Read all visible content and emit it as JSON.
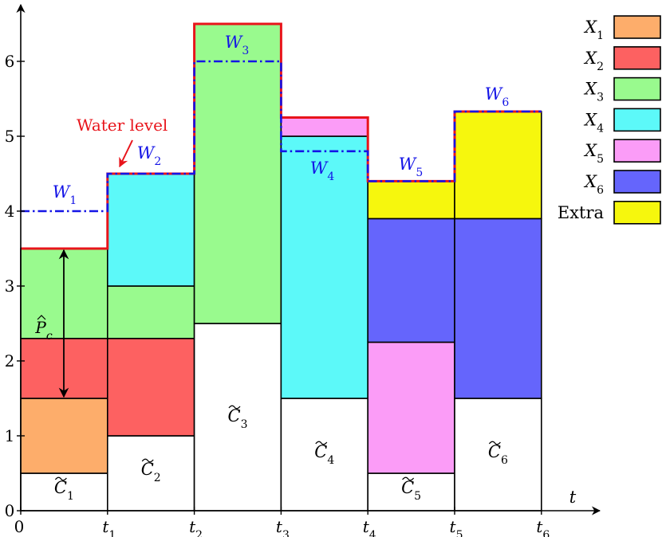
{
  "chart_data": {
    "type": "stacked-step",
    "xlabel": "t",
    "x_ticks": [
      {
        "main": "0",
        "sub": ""
      },
      {
        "main": "t",
        "sub": "1"
      },
      {
        "main": "t",
        "sub": "2"
      },
      {
        "main": "t",
        "sub": "3"
      },
      {
        "main": "t",
        "sub": "4"
      },
      {
        "main": "t",
        "sub": "5"
      },
      {
        "main": "t",
        "sub": "6"
      }
    ],
    "y_ticks": [
      "0",
      "1",
      "2",
      "3",
      "4",
      "5",
      "6"
    ],
    "ylim": [
      0,
      6.5
    ],
    "slots": [
      {
        "t0": 0,
        "t1": 1,
        "base": 0.5,
        "water": 4.0,
        "level": 3.5,
        "segments": [
          [
            "X1",
            0.5,
            1.5
          ],
          [
            "X2",
            1.5,
            2.3
          ],
          [
            "X3",
            2.3,
            3.5
          ]
        ]
      },
      {
        "t0": 1,
        "t1": 2,
        "base": 1.0,
        "water": 4.5,
        "level": 4.5,
        "segments": [
          [
            "X2",
            1.0,
            2.3
          ],
          [
            "X3",
            2.3,
            3.0
          ],
          [
            "X4",
            3.0,
            4.5
          ]
        ]
      },
      {
        "t0": 2,
        "t1": 3,
        "base": 2.5,
        "water": 6.0,
        "level": 6.5,
        "segments": [
          [
            "X3",
            2.5,
            6.5
          ]
        ]
      },
      {
        "t0": 3,
        "t1": 4,
        "base": 1.5,
        "water": 4.8,
        "level": 5.25,
        "segments": [
          [
            "X4",
            1.5,
            5.0
          ],
          [
            "X5",
            5.0,
            5.25
          ]
        ]
      },
      {
        "t0": 4,
        "t1": 5,
        "base": 0.5,
        "water": 4.4,
        "level": 4.4,
        "segments": [
          [
            "X5",
            0.5,
            2.25
          ],
          [
            "X6",
            2.25,
            3.9
          ],
          [
            "Extra",
            3.9,
            4.4
          ]
        ]
      },
      {
        "t0": 5,
        "t1": 6,
        "base": 1.5,
        "water": 5.33,
        "level": 5.33,
        "segments": [
          [
            "X6",
            1.5,
            3.9
          ],
          [
            "Extra",
            3.9,
            5.33
          ]
        ]
      }
    ],
    "c_labels": [
      {
        "main": "C",
        "sub": "1"
      },
      {
        "main": "C",
        "sub": "2"
      },
      {
        "main": "C",
        "sub": "3"
      },
      {
        "main": "C",
        "sub": "4"
      },
      {
        "main": "C",
        "sub": "5"
      },
      {
        "main": "C",
        "sub": "6"
      }
    ],
    "w_labels": [
      {
        "main": "W",
        "sub": "1"
      },
      {
        "main": "W",
        "sub": "2"
      },
      {
        "main": "W",
        "sub": "3"
      },
      {
        "main": "W",
        "sub": "4"
      },
      {
        "main": "W",
        "sub": "5"
      },
      {
        "main": "W",
        "sub": "6"
      }
    ],
    "legend": [
      {
        "key": "X1",
        "main": "X",
        "sub": "1",
        "color": "#FDAD6B"
      },
      {
        "key": "X2",
        "main": "X",
        "sub": "2",
        "color": "#FD6161"
      },
      {
        "key": "X3",
        "main": "X",
        "sub": "3",
        "color": "#99FA8E"
      },
      {
        "key": "X4",
        "main": "X",
        "sub": "4",
        "color": "#5CF9F9"
      },
      {
        "key": "X5",
        "main": "X",
        "sub": "5",
        "color": "#FB9CF7"
      },
      {
        "key": "X6",
        "main": "X",
        "sub": "6",
        "color": "#6565FC"
      },
      {
        "key": "Extra",
        "main": "Extra",
        "sub": "",
        "color": "#F6F70D"
      }
    ],
    "annotations": {
      "water_level_label": "Water level",
      "pc_label": {
        "main": "P",
        "sub": "c"
      },
      "pc_range": [
        1.5,
        3.5
      ]
    },
    "colors": {
      "water_level": "#E8141B",
      "water_fill": "#1414E6",
      "axis": "#000000"
    }
  }
}
